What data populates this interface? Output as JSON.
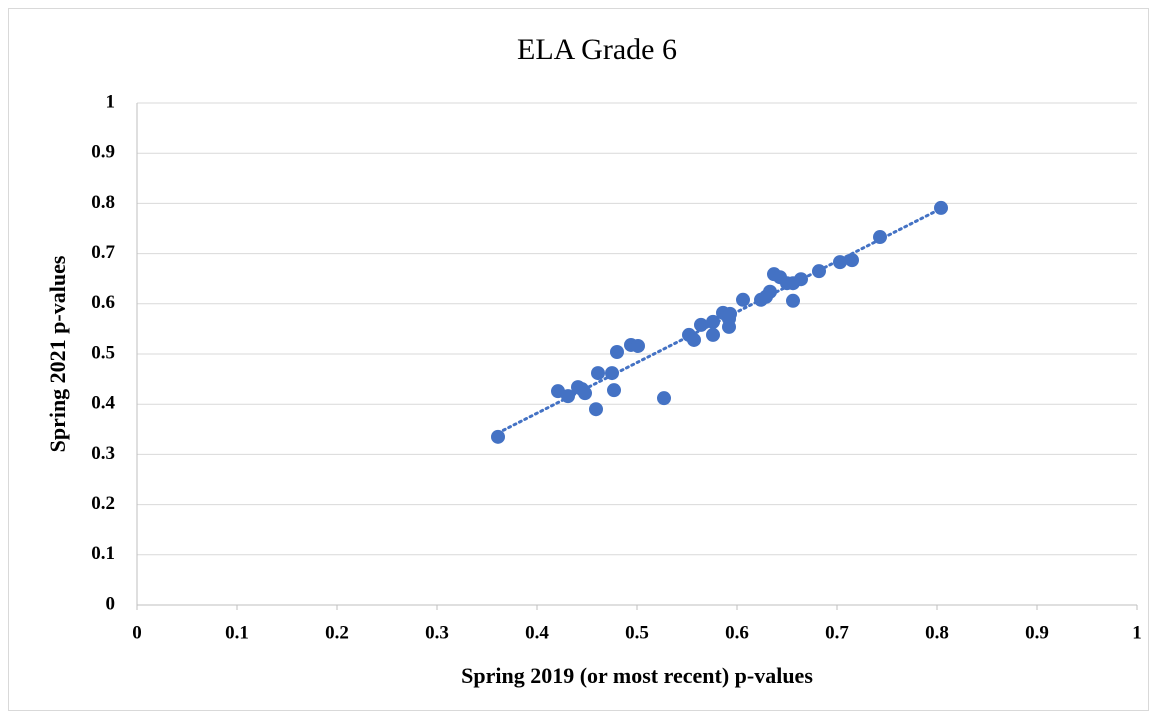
{
  "chart_data": {
    "type": "scatter",
    "title": "ELA Grade 6",
    "x_label": "Spring 2019 (or most recent) p-values",
    "y_label": "Spring 2021 p-values",
    "color": "#4472c4",
    "trendline": "linear",
    "grid": true,
    "xlim": [
      0,
      1
    ],
    "ylim": [
      0,
      1
    ],
    "xticks": [
      0,
      0.1,
      0.2,
      0.3,
      0.4,
      0.5,
      0.6,
      0.7,
      0.8,
      0.9,
      1
    ],
    "yticks": [
      0,
      0.1,
      0.2,
      0.3,
      0.4,
      0.5,
      0.6,
      0.7,
      0.8,
      0.9,
      1
    ],
    "x": [
      0.361,
      0.421,
      0.431,
      0.441,
      0.445,
      0.448,
      0.461,
      0.459,
      0.475,
      0.477,
      0.48,
      0.494,
      0.501,
      0.527,
      0.552,
      0.557,
      0.564,
      0.576,
      0.576,
      0.586,
      0.592,
      0.592,
      0.593,
      0.606,
      0.624,
      0.629,
      0.633,
      0.637,
      0.643,
      0.65,
      0.656,
      0.656,
      0.664,
      0.682,
      0.703,
      0.715,
      0.743,
      0.804
    ],
    "y": [
      0.335,
      0.426,
      0.416,
      0.434,
      0.43,
      0.422,
      0.462,
      0.39,
      0.462,
      0.428,
      0.504,
      0.518,
      0.516,
      0.412,
      0.538,
      0.528,
      0.558,
      0.564,
      0.538,
      0.582,
      0.57,
      0.554,
      0.58,
      0.608,
      0.608,
      0.614,
      0.624,
      0.659,
      0.653,
      0.641,
      0.641,
      0.606,
      0.649,
      0.665,
      0.683,
      0.687,
      0.733,
      0.791
    ]
  }
}
